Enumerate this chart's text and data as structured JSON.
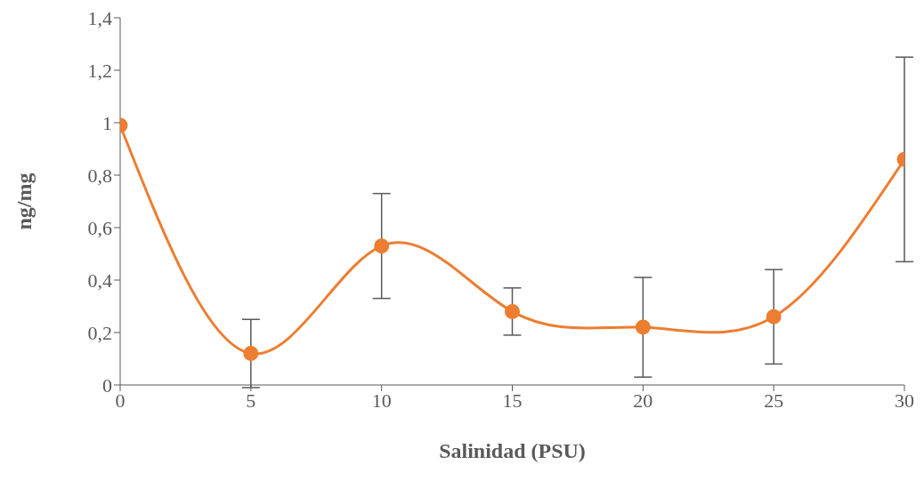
{
  "chart_data": {
    "type": "line",
    "xlabel": "Salinidad (PSU)",
    "ylabel": "ng/mg",
    "x": [
      0,
      5,
      10,
      15,
      20,
      25,
      30
    ],
    "series": [
      {
        "color": "#ed7d31",
        "values": [
          0.99,
          0.12,
          0.53,
          0.28,
          0.22,
          0.26,
          0.86
        ],
        "errors": [
          null,
          0.13,
          0.2,
          0.09,
          0.19,
          0.18,
          0.39
        ]
      }
    ],
    "xlim": [
      0,
      30
    ],
    "xticks": [
      0,
      5,
      10,
      15,
      20,
      25,
      30
    ],
    "ylim": [
      0,
      1.4
    ],
    "yticks": [
      0,
      {
        "value": 0.2,
        "label": "0,2"
      },
      {
        "value": 0.4,
        "label": "0,4"
      },
      {
        "value": 0.6,
        "label": "0,6"
      },
      {
        "value": 0.8,
        "label": "0,8"
      },
      1,
      {
        "value": 1.2,
        "label": "1,2"
      },
      {
        "value": 1.4,
        "label": "1,4"
      }
    ],
    "grid": false,
    "legend": false,
    "marker": "circle",
    "line_style": "solid"
  }
}
